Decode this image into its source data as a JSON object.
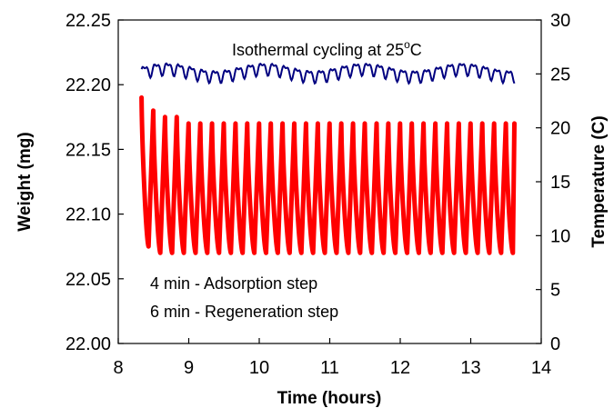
{
  "chart_data": {
    "type": "line",
    "title": "",
    "annotations": {
      "isothermal_prefix": "Isothermal cycling at 25",
      "isothermal_sup": "o",
      "isothermal_suffix": "C",
      "step1": "4 min - Adsorption step",
      "step2": "6 min - Regeneration step"
    },
    "xlabel": "Time (hours)",
    "ylabel_left": "Weight (mg)",
    "ylabel_right": "Temperature (C)",
    "xlim": [
      8,
      14
    ],
    "ylim_left": [
      22.0,
      22.25
    ],
    "ylim_right": [
      0,
      30
    ],
    "x_ticks": [
      "8",
      "9",
      "10",
      "11",
      "12",
      "13",
      "14"
    ],
    "y_left_ticks": [
      "22.00",
      "22.05",
      "22.10",
      "22.15",
      "22.20",
      "22.25"
    ],
    "y_right_ticks": [
      "0",
      "5",
      "10",
      "15",
      "20",
      "25",
      "30"
    ],
    "series": [
      {
        "name": "Weight",
        "axis": "left",
        "color": "#ff0000",
        "cycle_period_hours": 0.1667,
        "x_start": 8.33,
        "x_end": 13.62,
        "peaks": [
          22.19,
          22.18,
          22.175,
          22.175,
          22.17,
          22.17,
          22.17,
          22.17,
          22.17,
          22.17,
          22.17,
          22.17,
          22.17,
          22.17,
          22.17,
          22.17,
          22.17,
          22.17,
          22.17,
          22.17,
          22.17,
          22.17,
          22.17,
          22.17,
          22.17,
          22.17,
          22.17,
          22.17,
          22.17,
          22.17,
          22.17,
          22.17
        ],
        "troughs": [
          22.075,
          22.07,
          22.07,
          22.07,
          22.07,
          22.07,
          22.07,
          22.07,
          22.07,
          22.07,
          22.07,
          22.07,
          22.07,
          22.07,
          22.07,
          22.07,
          22.07,
          22.07,
          22.07,
          22.07,
          22.07,
          22.07,
          22.07,
          22.07,
          22.07,
          22.07,
          22.07,
          22.07,
          22.07,
          22.07,
          22.07,
          22.07
        ]
      },
      {
        "name": "Temperature",
        "axis": "right",
        "color": "#000080",
        "x_start": 8.33,
        "x_end": 13.62,
        "mean": 25.2,
        "amplitude": 0.5
      }
    ],
    "grid": false,
    "legend": "none"
  }
}
